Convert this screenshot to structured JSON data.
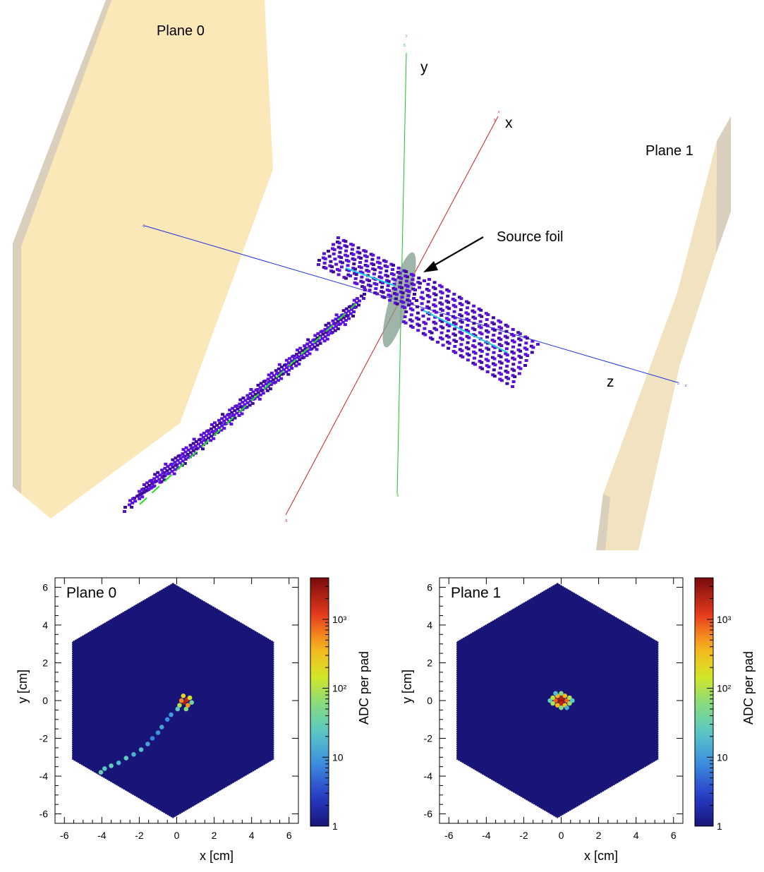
{
  "scene": {
    "plane0_label": "Plane 0",
    "plane1_label": "Plane 1",
    "axis_x_label": "x",
    "axis_y_label": "y",
    "axis_z_label": "z",
    "source_label": "Source foil",
    "colors": {
      "plane": "#fbe7b4",
      "plane_edge": "#ded6c4",
      "x_axis": "#e02020",
      "y_axis": "#20c020",
      "z_axis": "#2030e0",
      "voxel": "#5a12d8",
      "voxel_dark": "#3e0a9a",
      "track": "#22e022",
      "foil": "#7f9c8c"
    }
  },
  "chart_data": [
    {
      "type": "heatmap",
      "title": "Plane 0",
      "xlabel": "x [cm]",
      "ylabel": "y [cm]",
      "colorbar_label": "ADC per pad",
      "colorbar_scale": "log",
      "colorbar_range": [
        1,
        4000
      ],
      "colorbar_ticks": [
        "1",
        "10",
        "10²",
        "10³"
      ],
      "xlim": [
        -6.5,
        6.5
      ],
      "ylim": [
        -6.5,
        6.5
      ],
      "x_ticks": [
        -6,
        -4,
        -2,
        0,
        2,
        4,
        6
      ],
      "y_ticks": [
        -6,
        -4,
        -2,
        0,
        2,
        4,
        6
      ],
      "detector_shape": "hexagon",
      "detector_radius": 6.2,
      "background_value": 1,
      "hits": [
        {
          "x": 0.4,
          "y": -0.1,
          "v": 2500
        },
        {
          "x": 0.55,
          "y": 0.05,
          "v": 1800
        },
        {
          "x": 0.25,
          "y": 0.0,
          "v": 600
        },
        {
          "x": 0.6,
          "y": -0.25,
          "v": 500
        },
        {
          "x": 0.35,
          "y": 0.25,
          "v": 200
        },
        {
          "x": 0.7,
          "y": 0.15,
          "v": 150
        },
        {
          "x": 0.15,
          "y": -0.25,
          "v": 90
        },
        {
          "x": 0.5,
          "y": -0.45,
          "v": 60
        },
        {
          "x": 0.8,
          "y": -0.1,
          "v": 40
        },
        {
          "x": 0.05,
          "y": -0.45,
          "v": 25
        },
        {
          "x": -0.3,
          "y": -0.75,
          "v": 10
        },
        {
          "x": -0.5,
          "y": -1.0,
          "v": 8
        },
        {
          "x": -0.8,
          "y": -1.4,
          "v": 12
        },
        {
          "x": -1.0,
          "y": -1.7,
          "v": 9
        },
        {
          "x": -1.3,
          "y": -2.0,
          "v": 7
        },
        {
          "x": -1.55,
          "y": -2.3,
          "v": 11
        },
        {
          "x": -1.9,
          "y": -2.6,
          "v": 20
        },
        {
          "x": -2.3,
          "y": -2.85,
          "v": 15
        },
        {
          "x": -2.7,
          "y": -3.05,
          "v": 25
        },
        {
          "x": -3.1,
          "y": -3.3,
          "v": 18
        },
        {
          "x": -3.5,
          "y": -3.45,
          "v": 30
        },
        {
          "x": -3.85,
          "y": -3.6,
          "v": 22
        },
        {
          "x": -4.05,
          "y": -3.8,
          "v": 35
        }
      ]
    },
    {
      "type": "heatmap",
      "title": "Plane 1",
      "xlabel": "x [cm]",
      "ylabel": "y [cm]",
      "colorbar_label": "ADC per pad",
      "colorbar_scale": "log",
      "colorbar_range": [
        1,
        4000
      ],
      "colorbar_ticks": [
        "1",
        "10",
        "10²",
        "10³"
      ],
      "xlim": [
        -6.5,
        6.5
      ],
      "ylim": [
        -6.5,
        6.5
      ],
      "x_ticks": [
        -6,
        -4,
        -2,
        0,
        2,
        4,
        6
      ],
      "y_ticks": [
        -6,
        -4,
        -2,
        0,
        2,
        4,
        6
      ],
      "detector_shape": "hexagon",
      "detector_radius": 6.2,
      "background_value": 1,
      "hits": [
        {
          "x": -0.1,
          "y": 0.0,
          "v": 3000
        },
        {
          "x": 0.1,
          "y": 0.0,
          "v": 2800
        },
        {
          "x": 0.0,
          "y": 0.15,
          "v": 2200
        },
        {
          "x": 0.0,
          "y": -0.15,
          "v": 2000
        },
        {
          "x": -0.3,
          "y": 0.0,
          "v": 900
        },
        {
          "x": 0.3,
          "y": 0.0,
          "v": 800
        },
        {
          "x": -0.2,
          "y": 0.25,
          "v": 400
        },
        {
          "x": 0.2,
          "y": 0.25,
          "v": 350
        },
        {
          "x": -0.2,
          "y": -0.25,
          "v": 380
        },
        {
          "x": 0.2,
          "y": -0.25,
          "v": 300
        },
        {
          "x": -0.45,
          "y": 0.15,
          "v": 120
        },
        {
          "x": 0.45,
          "y": 0.15,
          "v": 100
        },
        {
          "x": -0.45,
          "y": -0.15,
          "v": 90
        },
        {
          "x": 0.45,
          "y": -0.15,
          "v": 80
        },
        {
          "x": 0.0,
          "y": 0.38,
          "v": 60
        },
        {
          "x": 0.0,
          "y": -0.38,
          "v": 55
        },
        {
          "x": -0.6,
          "y": 0.0,
          "v": 30
        },
        {
          "x": 0.6,
          "y": 0.0,
          "v": 25
        },
        {
          "x": -0.3,
          "y": 0.38,
          "v": 20
        },
        {
          "x": 0.3,
          "y": -0.38,
          "v": 15
        }
      ]
    }
  ]
}
